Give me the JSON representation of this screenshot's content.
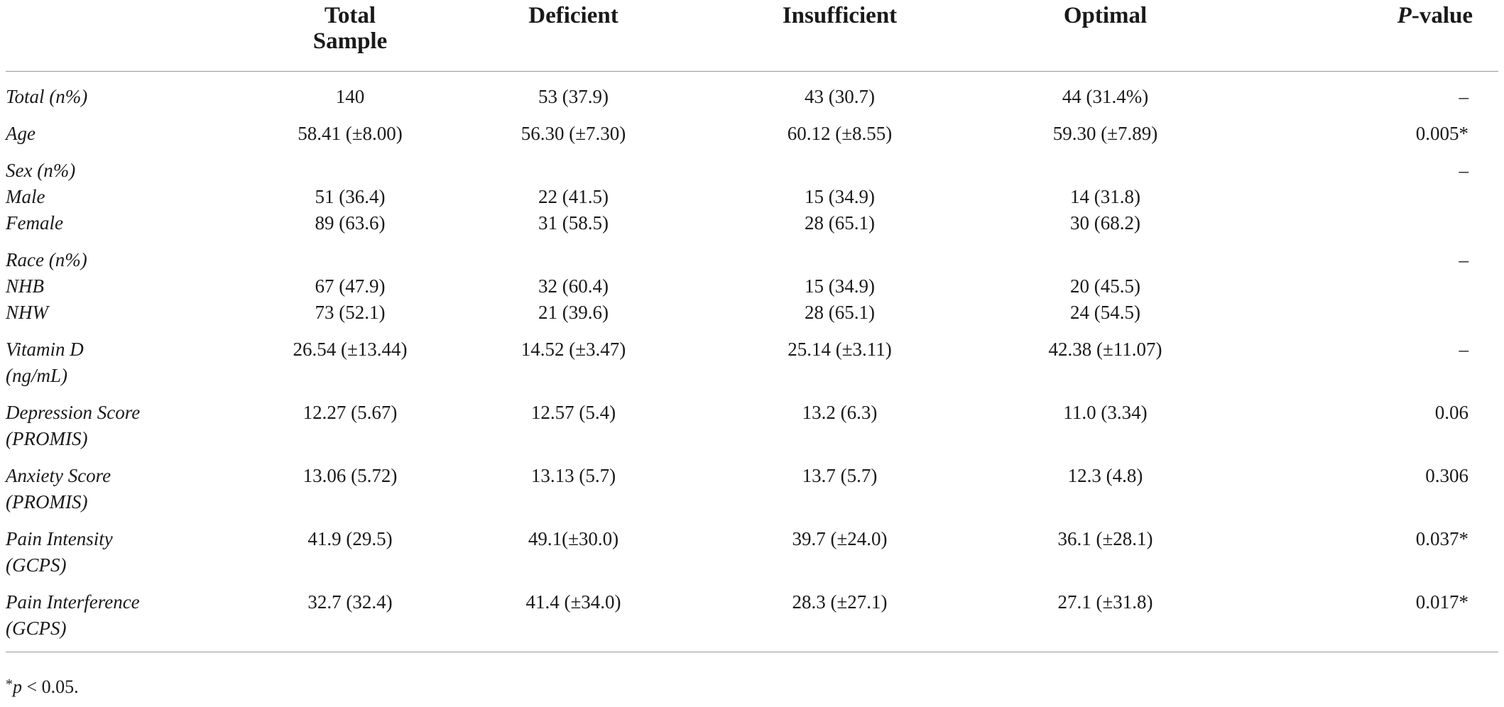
{
  "header": {
    "col0": "",
    "col1a": "Total",
    "col1b": "Sample",
    "col2": "Deficient",
    "col3": "Insufficient",
    "col4": "Optimal",
    "col5_p": "P",
    "col5_rest": "-value"
  },
  "rows": [
    {
      "label": "Total (n%)",
      "label2": "",
      "total": "140",
      "deficient": "53 (37.9)",
      "insufficient": "43 (30.7)",
      "optimal": "44 (31.4%)",
      "p": "–"
    },
    {
      "label": "Age",
      "label2": "",
      "total": "58.41 (±8.00)",
      "deficient": "56.30 (±7.30)",
      "insufficient": "60.12 (±8.55)",
      "optimal": "59.30 (±7.89)",
      "p": "0.005*"
    },
    {
      "label": "Sex (n%)",
      "label2": "",
      "total": "",
      "deficient": "",
      "insufficient": "",
      "optimal": "",
      "p": "–"
    },
    {
      "label": "Male",
      "label2": "",
      "total": "51 (36.4)",
      "deficient": "22 (41.5)",
      "insufficient": "15 (34.9)",
      "optimal": "14 (31.8)",
      "p": ""
    },
    {
      "label": "Female",
      "label2": "",
      "total": "89 (63.6)",
      "deficient": "31 (58.5)",
      "insufficient": "28 (65.1)",
      "optimal": "30 (68.2)",
      "p": ""
    },
    {
      "label": "Race (n%)",
      "label2": "",
      "total": "",
      "deficient": "",
      "insufficient": "",
      "optimal": "",
      "p": "–"
    },
    {
      "label": "NHB",
      "label2": "",
      "total": "67 (47.9)",
      "deficient": "32 (60.4)",
      "insufficient": "15 (34.9)",
      "optimal": "20 (45.5)",
      "p": ""
    },
    {
      "label": "NHW",
      "label2": "",
      "total": "73 (52.1)",
      "deficient": "21 (39.6)",
      "insufficient": "28 (65.1)",
      "optimal": "24 (54.5)",
      "p": ""
    },
    {
      "label": "Vitamin D",
      "label2": "(ng/mL)",
      "total": "26.54 (±13.44)",
      "deficient": "14.52 (±3.47)",
      "insufficient": "25.14 (±3.11)",
      "optimal": "42.38 (±11.07)",
      "p": "–"
    },
    {
      "label": "Depression Score",
      "label2": "(PROMIS)",
      "total": "12.27 (5.67)",
      "deficient": "12.57 (5.4)",
      "insufficient": "13.2 (6.3)",
      "optimal": "11.0 (3.34)",
      "p": "0.06"
    },
    {
      "label": "Anxiety Score",
      "label2": "(PROMIS)",
      "total": "13.06 (5.72)",
      "deficient": "13.13 (5.7)",
      "insufficient": "13.7 (5.7)",
      "optimal": "12.3 (4.8)",
      "p": "0.306"
    },
    {
      "label": "Pain Intensity",
      "label2": "(GCPS)",
      "total": "41.9 (29.5)",
      "deficient": "49.1(±30.0)",
      "insufficient": "39.7 (±24.0)",
      "optimal": "36.1 (±28.1)",
      "p": "0.037*"
    },
    {
      "label": "Pain Interference",
      "label2": "(GCPS)",
      "total": "32.7 (32.4)",
      "deficient": "41.4 (±34.0)",
      "insufficient": "28.3 (±27.1)",
      "optimal": "27.1 (±31.8)",
      "p": "0.017*"
    }
  ],
  "footnote": {
    "star": "*",
    "p": "p",
    "rest": " < 0.05."
  }
}
